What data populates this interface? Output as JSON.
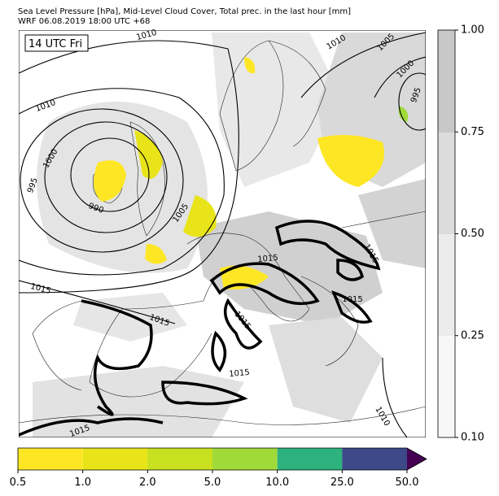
{
  "header": {
    "title": "Sea Level Pressure [hPa], Mid-Level Cloud Cover, Total prec. in the last hour [mm]",
    "subtitle": "WRF 06.08.2019 18:00 UTC +68"
  },
  "map": {
    "time_label": "14 UTC Fri",
    "contour_labels": [
      "1010",
      "1010",
      "1005",
      "1000",
      "995",
      "1010",
      "1000",
      "995",
      "990",
      "1005",
      "1015",
      "1015",
      "1015",
      "1015",
      "1015",
      "1015",
      "1015",
      "1010",
      "1015"
    ]
  },
  "cloud_colorbar": {
    "ticks": [
      "0.10",
      "0.25",
      "0.50",
      "0.75",
      "1.00"
    ]
  },
  "precip_colorbar": {
    "ticks": [
      "0.5",
      "1.0",
      "2.0",
      "5.0",
      "10.0",
      "25.0",
      "50.0"
    ]
  }
}
